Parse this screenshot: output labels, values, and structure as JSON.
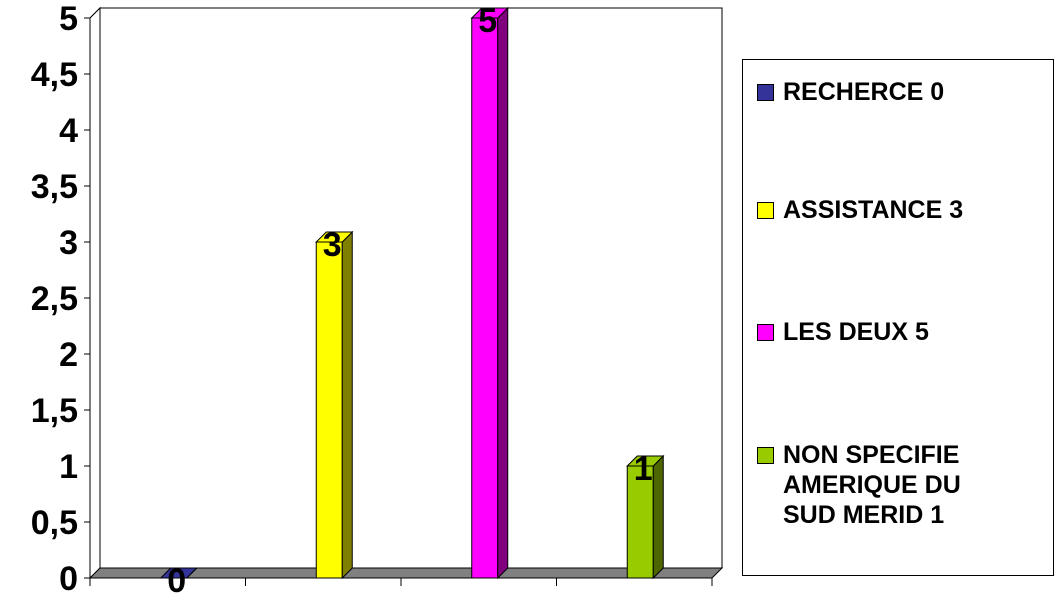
{
  "chart_data": {
    "type": "bar",
    "categories": [
      "RECHERCE 0",
      "ASSISTANCE 3",
      "LES DEUX 5",
      "NON SPECIFIE AMERIQUE DU SUD MERID 1"
    ],
    "values": [
      0,
      3,
      5,
      1
    ],
    "data_labels": [
      "0",
      "3",
      "5",
      "1"
    ],
    "colors": [
      "#333399",
      "#ffff00",
      "#ff00ff",
      "#99cc00"
    ],
    "side_colors": [
      "#1a1a4d",
      "#808000",
      "#800080",
      "#4d6600"
    ],
    "ylim": [
      0,
      5
    ],
    "yticks": [
      0,
      0.5,
      1,
      1.5,
      2,
      2.5,
      3,
      3.5,
      4,
      4.5,
      5
    ],
    "ytick_labels": [
      "0",
      "0,5",
      "1",
      "1,5",
      "2",
      "2,5",
      "3",
      "3,5",
      "4",
      "4,5",
      "5"
    ],
    "grid": true,
    "three_d": true,
    "legend_position": "right"
  },
  "legend": {
    "items": [
      {
        "label": "RECHERCE 0",
        "color": "#333399"
      },
      {
        "label": "ASSISTANCE 3",
        "color": "#ffff00"
      },
      {
        "label": "LES DEUX 5",
        "color": "#ff00ff"
      },
      {
        "label": "NON SPECIFIE\nAMERIQUE DU\nSUD MERID 1",
        "color": "#99cc00"
      }
    ]
  }
}
